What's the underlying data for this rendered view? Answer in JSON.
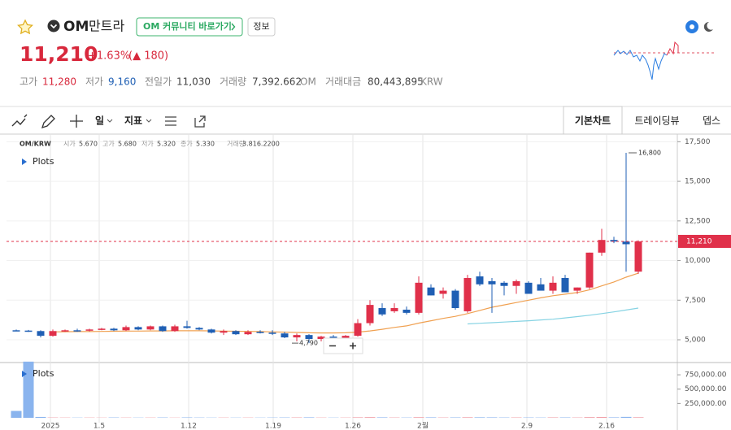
{
  "header": {
    "symbol": "OM",
    "name": "만트라",
    "community_button": "OM 커뮤니티 바로가기",
    "info_button": "정보",
    "price": "11,210",
    "change_rate": "+1.63%",
    "change_amount": "(▲ 180)",
    "stats": [
      {
        "label": "고가",
        "value": "11,280"
      },
      {
        "label": "저가",
        "value": "9,160"
      },
      {
        "label": "전일가",
        "value": "11,030"
      },
      {
        "label": "거래량",
        "value": "7,392.662",
        "unit": "OM"
      },
      {
        "label": "거래대금",
        "value": "80,443,895",
        "unit": "KRW"
      }
    ]
  },
  "toolbar": {
    "interval": "일",
    "indicators": "지표",
    "tabs": [
      "기본차트",
      "트레이딩뷰",
      "뎁스"
    ]
  },
  "chart": {
    "legend": {
      "pair": "OM/KRW",
      "fields": [
        {
          "label": "시가",
          "value": "5.670"
        },
        {
          "label": "고가",
          "value": "5.680"
        },
        {
          "label": "저가",
          "value": "5.320"
        },
        {
          "label": "종가",
          "value": "5.330"
        },
        {
          "label": "거래량",
          "value": "3.816.2200"
        }
      ]
    },
    "plots_label": "Plots",
    "volume_plots_label": "Plots",
    "ylim": [
      3615,
      17980
    ],
    "yticks": [
      {
        "value": 5000,
        "label": "5,000"
      },
      {
        "value": 7500,
        "label": "7,500"
      },
      {
        "value": 10000,
        "label": "10,000"
      },
      {
        "value": 12500,
        "label": "12,500"
      },
      {
        "value": 15000,
        "label": "15,000"
      },
      {
        "value": 17500,
        "label": "17,500"
      }
    ],
    "volume_ylim": [
      0,
      950000
    ],
    "volume_ticks": [
      {
        "value": 250000,
        "label": "250,000.00"
      },
      {
        "value": 500000,
        "label": "500,000.00"
      },
      {
        "value": 750000,
        "label": "750,000.00"
      }
    ],
    "x_labels": [
      "2025",
      "1.5",
      "1.12",
      "1.19",
      "1.26",
      "2월",
      "2.9",
      "2.16"
    ],
    "current_price": {
      "value": 11210,
      "label": "11,210"
    },
    "high_annotation": {
      "value": 16800,
      "label": "16,800"
    },
    "low_annotation": {
      "value": 4790,
      "label": "4,790"
    },
    "up_color": "#e0304a",
    "down_color": "#1f5fb4",
    "candles": [
      [
        5600,
        5650,
        5550,
        5580
      ],
      [
        5580,
        5620,
        5500,
        5550
      ],
      [
        5550,
        5600,
        5150,
        5250
      ],
      [
        5250,
        5650,
        5200,
        5550
      ],
      [
        5550,
        5650,
        5500,
        5600
      ],
      [
        5600,
        5700,
        5500,
        5580
      ],
      [
        5580,
        5700,
        5520,
        5650
      ],
      [
        5650,
        5750,
        5600,
        5700
      ],
      [
        5700,
        5760,
        5550,
        5600
      ],
      [
        5600,
        5900,
        5550,
        5800
      ],
      [
        5800,
        5850,
        5600,
        5650
      ],
      [
        5650,
        5900,
        5600,
        5850
      ],
      [
        5850,
        5900,
        5500,
        5550
      ],
      [
        5550,
        5950,
        5500,
        5850
      ],
      [
        5850,
        6200,
        5700,
        5750
      ],
      [
        5750,
        5800,
        5600,
        5650
      ],
      [
        5650,
        5700,
        5400,
        5450
      ],
      [
        5450,
        5650,
        5300,
        5550
      ],
      [
        5550,
        5600,
        5300,
        5350
      ],
      [
        5350,
        5600,
        5300,
        5500
      ],
      [
        5500,
        5600,
        5400,
        5450
      ],
      [
        5450,
        5600,
        5300,
        5400
      ],
      [
        5400,
        5500,
        5100,
        5150
      ],
      [
        5150,
        5400,
        4900,
        5300
      ],
      [
        5300,
        5350,
        4790,
        5050
      ],
      [
        5050,
        5250,
        4900,
        5200
      ],
      [
        5200,
        5300,
        5000,
        5100
      ],
      [
        5100,
        5300,
        5000,
        5250
      ],
      [
        5250,
        6300,
        5200,
        6050
      ],
      [
        6050,
        7500,
        5900,
        7200
      ],
      [
        7000,
        7300,
        6500,
        6600
      ],
      [
        6800,
        7300,
        6700,
        7000
      ],
      [
        6900,
        7100,
        6600,
        6700
      ],
      [
        6700,
        9000,
        6600,
        8600
      ],
      [
        8300,
        8500,
        7800,
        7800
      ],
      [
        7900,
        8300,
        7600,
        8100
      ],
      [
        8100,
        8200,
        6900,
        7000
      ],
      [
        6800,
        9100,
        6700,
        8900
      ],
      [
        9000,
        9300,
        8400,
        8500
      ],
      [
        8700,
        8900,
        6700,
        8500
      ],
      [
        8600,
        8700,
        7800,
        8400
      ],
      [
        8400,
        8800,
        7900,
        8700
      ],
      [
        8600,
        8700,
        7900,
        7900
      ],
      [
        8500,
        8900,
        8200,
        8100
      ],
      [
        8100,
        9000,
        7900,
        8600
      ],
      [
        8900,
        9100,
        8000,
        8000
      ],
      [
        8100,
        8300,
        7900,
        8300
      ],
      [
        8300,
        10500,
        8200,
        10500
      ],
      [
        10500,
        12000,
        10300,
        11300
      ],
      [
        11300,
        11500,
        11100,
        11200
      ],
      [
        11200,
        16800,
        9300,
        11030
      ],
      [
        9300,
        11280,
        9160,
        11210
      ]
    ],
    "volume": [
      120000,
      980000,
      15000,
      6000,
      5000,
      4000,
      5000,
      4000,
      6000,
      5000,
      4000,
      5000,
      6000,
      4000,
      7000,
      5000,
      4000,
      5000,
      4000,
      5000,
      4000,
      5000,
      6000,
      7000,
      8000,
      5000,
      4000,
      5000,
      9000,
      12000,
      8000,
      6000,
      5000,
      11000,
      8000,
      6000,
      7000,
      10000,
      9000,
      8000,
      6000,
      7000,
      6000,
      5000,
      8000,
      7000,
      6000,
      12000,
      14000,
      8000,
      16000,
      10000
    ],
    "ma_long": [
      null,
      null,
      null,
      5500,
      5510,
      5520,
      5520,
      5530,
      5540,
      5550,
      5550,
      5560,
      5560,
      5570,
      5570,
      5570,
      5560,
      5550,
      5540,
      5530,
      5520,
      5500,
      5480,
      5460,
      5440,
      5430,
      5430,
      5440,
      5480,
      5560,
      5660,
      5780,
      5880,
      6050,
      6200,
      6350,
      6480,
      6650,
      6850,
      7050,
      7200,
      7350,
      7500,
      7650,
      7780,
      7880,
      7980,
      8150,
      8400,
      8650,
      8950,
      9200
    ],
    "ma_slow": [
      null,
      null,
      null,
      null,
      null,
      null,
      null,
      null,
      null,
      null,
      null,
      null,
      null,
      null,
      null,
      null,
      null,
      null,
      null,
      null,
      null,
      null,
      null,
      null,
      null,
      null,
      null,
      null,
      null,
      null,
      null,
      null,
      null,
      null,
      null,
      null,
      null,
      6000,
      6040,
      6080,
      6120,
      6160,
      6200,
      6250,
      6300,
      6380,
      6460,
      6550,
      6650,
      6760,
      6880,
      7000
    ],
    "ma_long_color": "#f0a050",
    "ma_slow_color": "#86d3e3"
  }
}
